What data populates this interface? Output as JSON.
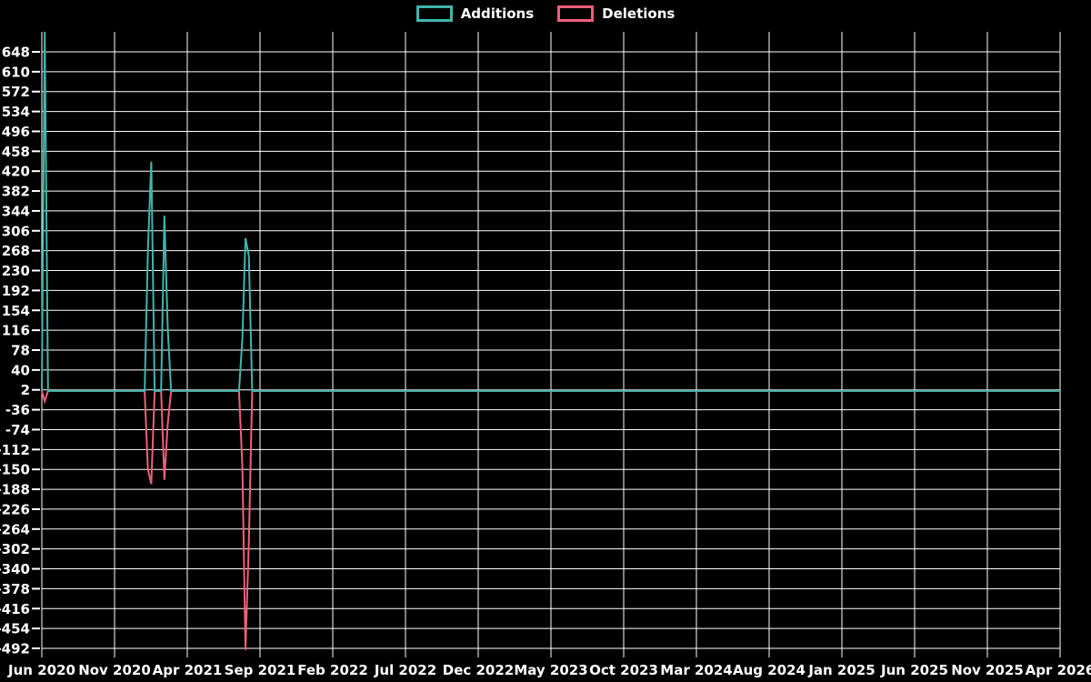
{
  "legend": {
    "additions_label": "Additions",
    "deletions_label": "Deletions"
  },
  "colors": {
    "background": "#000000",
    "grid": "#ffffff",
    "text": "#ffffff",
    "additions": "#40b5ad",
    "deletions": "#f05f7a"
  },
  "chart_data": {
    "type": "line",
    "title": "",
    "xlabel": "",
    "ylabel": "",
    "legend_position": "top-center",
    "grid": true,
    "x_range": [
      "2020-06-01",
      "2026-04-01"
    ],
    "ylim": [
      -492,
      648
    ],
    "y_tick_step": 38,
    "y_ticks": [
      648,
      610,
      572,
      534,
      496,
      458,
      420,
      382,
      344,
      306,
      268,
      230,
      192,
      154,
      116,
      78,
      40,
      2,
      -36,
      -74,
      -112,
      -150,
      -188,
      -226,
      -264,
      -302,
      -340,
      -378,
      -416,
      -454,
      -492
    ],
    "x_tick_labels": [
      "Jun 2020",
      "Nov 2020",
      "Apr 2021",
      "Sep 2021",
      "Feb 2022",
      "Jul 2022",
      "Dec 2022",
      "May 2023",
      "Oct 2023",
      "Mar 2024",
      "Aug 2024",
      "Jan 2025",
      "Jun 2025",
      "Nov 2025",
      "Apr 2026"
    ],
    "series": [
      {
        "name": "Additions",
        "color": "#40b5ad",
        "points": [
          [
            "2020-06-01",
            0
          ],
          [
            "2020-06-07",
            688
          ],
          [
            "2020-06-14",
            0
          ],
          [
            "2021-01-03",
            0
          ],
          [
            "2021-01-10",
            270
          ],
          [
            "2021-01-17",
            438
          ],
          [
            "2021-01-24",
            0
          ],
          [
            "2021-02-07",
            0
          ],
          [
            "2021-02-14",
            335
          ],
          [
            "2021-02-21",
            120
          ],
          [
            "2021-02-28",
            0
          ],
          [
            "2021-07-18",
            0
          ],
          [
            "2021-07-25",
            100
          ],
          [
            "2021-08-01",
            292
          ],
          [
            "2021-08-08",
            258
          ],
          [
            "2021-08-15",
            0
          ],
          [
            "2026-04-01",
            0
          ]
        ]
      },
      {
        "name": "Deletions",
        "color": "#f05f7a",
        "points": [
          [
            "2020-06-01",
            0
          ],
          [
            "2020-06-07",
            -20
          ],
          [
            "2020-06-14",
            0
          ],
          [
            "2021-01-03",
            0
          ],
          [
            "2021-01-10",
            -150
          ],
          [
            "2021-01-17",
            -178
          ],
          [
            "2021-01-24",
            0
          ],
          [
            "2021-02-07",
            0
          ],
          [
            "2021-02-14",
            -170
          ],
          [
            "2021-02-21",
            -63
          ],
          [
            "2021-02-28",
            0
          ],
          [
            "2021-07-18",
            0
          ],
          [
            "2021-07-25",
            -145
          ],
          [
            "2021-08-01",
            -495
          ],
          [
            "2021-08-08",
            -290
          ],
          [
            "2021-08-15",
            0
          ],
          [
            "2026-04-01",
            0
          ]
        ]
      }
    ]
  }
}
